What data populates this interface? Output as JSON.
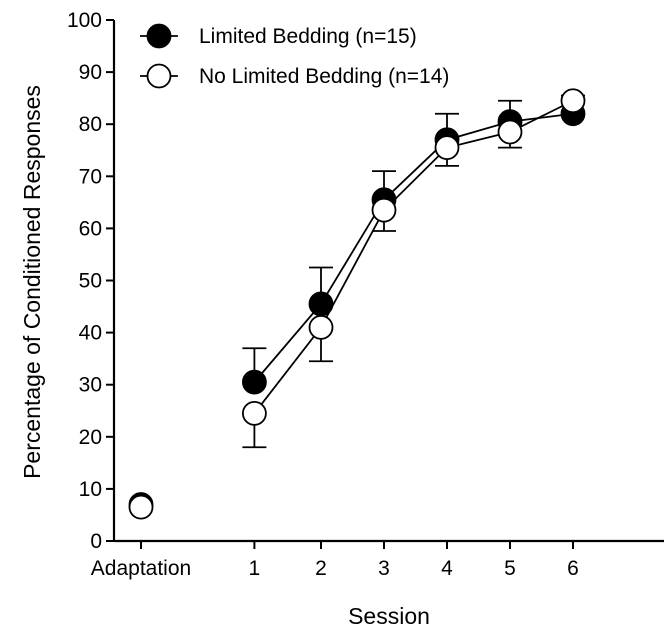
{
  "chart_data": {
    "type": "line",
    "categories": [
      "Adaptation",
      "1",
      "2",
      "3",
      "4",
      "5",
      "6"
    ],
    "x_positions": [
      0,
      1.575,
      2.5,
      3.375,
      4.25,
      5.125,
      6.0
    ],
    "xlabel": "Session",
    "ylabel": "Percentage of Conditioned Responses",
    "ylim": [
      0,
      100
    ],
    "yticks": [
      0,
      10,
      20,
      30,
      40,
      50,
      60,
      70,
      80,
      90,
      100
    ],
    "grid": false,
    "legend_position": "top-left",
    "series": [
      {
        "name": "Limited Bedding (n=15)",
        "marker": "filled-circle",
        "color": "#000000",
        "values": [
          7,
          30.5,
          45.5,
          65.5,
          77,
          80.5,
          82
        ],
        "error": [
          null,
          6.5,
          7,
          5.5,
          5,
          4,
          3.5
        ]
      },
      {
        "name": "No Limited Bedding (n=14)",
        "marker": "open-circle",
        "color": "#000000",
        "values": [
          6.5,
          24.5,
          41,
          63.5,
          75.5,
          78.5,
          84.5
        ],
        "error": [
          null,
          6.5,
          6.5,
          4,
          3.5,
          3,
          2
        ]
      }
    ]
  }
}
